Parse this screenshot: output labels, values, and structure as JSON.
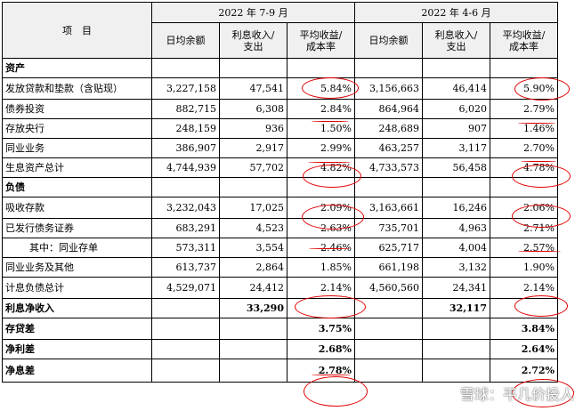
{
  "header": {
    "item": "项　目",
    "period_q3": "2022 年 7-9 月",
    "period_q2": "2022 年 4-6 月",
    "cols": [
      "日均余额",
      "利息收入/\n支出",
      "平均收益/\n成本率"
    ]
  },
  "rows": [
    {
      "label": "资产",
      "section": true
    },
    {
      "label": "发放贷款和垫款（含贴现）",
      "q3": [
        "3,227,158",
        "47,541",
        "5.84%"
      ],
      "q2": [
        "3,156,663",
        "46,414",
        "5.90%"
      ]
    },
    {
      "label": "债券投资",
      "q3": [
        "882,715",
        "6,308",
        "2.84%"
      ],
      "q2": [
        "864,964",
        "6,020",
        "2.79%"
      ]
    },
    {
      "label": "存放央行",
      "q3": [
        "248,159",
        "936",
        "1.50%"
      ],
      "q2": [
        "248,689",
        "907",
        "1.46%"
      ]
    },
    {
      "label": "同业业务",
      "q3": [
        "386,907",
        "2,917",
        "2.99%"
      ],
      "q2": [
        "463,257",
        "3,117",
        "2.70%"
      ]
    },
    {
      "label": "生息资产总计",
      "q3": [
        "4,744,939",
        "57,702",
        "4.82%"
      ],
      "q2": [
        "4,733,573",
        "56,458",
        "4.78%"
      ]
    },
    {
      "label": "负债",
      "section": true
    },
    {
      "label": "吸收存款",
      "q3": [
        "3,232,043",
        "17,025",
        "2.09%"
      ],
      "q2": [
        "3,163,661",
        "16,246",
        "2.06%"
      ]
    },
    {
      "label": "已发行债务证券",
      "q3": [
        "683,291",
        "4,523",
        "2.63%"
      ],
      "q2": [
        "735,701",
        "4,963",
        "2.71%"
      ]
    },
    {
      "label": "其中：同业存单",
      "indent": true,
      "q3": [
        "573,311",
        "3,554",
        "2.46%"
      ],
      "q2": [
        "625,717",
        "4,004",
        "2.57%"
      ]
    },
    {
      "label": "同业业务及其他",
      "q3": [
        "613,737",
        "2,864",
        "1.85%"
      ],
      "q2": [
        "661,198",
        "3,132",
        "1.90%"
      ]
    },
    {
      "label": "计息负债总计",
      "q3": [
        "4,529,071",
        "24,412",
        "2.14%"
      ],
      "q2": [
        "4,560,560",
        "24,341",
        "2.14%"
      ]
    },
    {
      "label": "利息净收入",
      "bold": true,
      "q3": [
        "",
        "33,290",
        ""
      ],
      "q2": [
        "",
        "32,117",
        ""
      ]
    },
    {
      "label": "存贷差",
      "bold": true,
      "q3": [
        "",
        "",
        "3.75%"
      ],
      "q2": [
        "",
        "",
        "3.84%"
      ]
    },
    {
      "label": "净利差",
      "bold": true,
      "q3": [
        "",
        "",
        "2.68%"
      ],
      "q2": [
        "",
        "",
        "2.64%"
      ]
    },
    {
      "label": "净息差",
      "bold": true,
      "q3": [
        "",
        "",
        "2.78%"
      ],
      "q2": [
        "",
        "",
        "2.72%"
      ]
    }
  ],
  "watermark": "雪球：平几价投人",
  "colors": {
    "header_bg": "#f0f0f0",
    "annotation": "#e00000"
  }
}
